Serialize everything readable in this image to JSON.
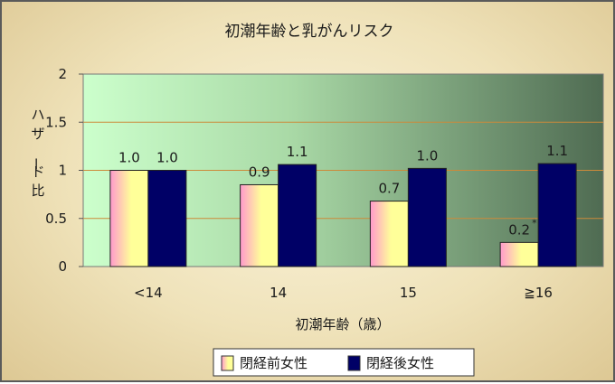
{
  "chart_data": {
    "type": "bar",
    "title": "初潮年齢と乳がんリスク",
    "xlabel": "初潮年齢（歳）",
    "ylabel": "ハザード比",
    "ylim": [
      0,
      2
    ],
    "yticks": [
      "0",
      "0.5",
      "1",
      "1.5",
      "2"
    ],
    "yticks_values": [
      0,
      0.5,
      1,
      1.5,
      2
    ],
    "categories": [
      "<14",
      "14",
      "15",
      "≧16"
    ],
    "series": [
      {
        "name": "閉経前女性",
        "values": [
          1.0,
          0.85,
          0.68,
          0.25
        ],
        "labels": [
          "1.0",
          "0.9",
          "0.7",
          "0.2"
        ],
        "colors": [
          "#ff99cc",
          "#ffff99"
        ]
      },
      {
        "name": "閉経後女性",
        "values": [
          1.0,
          1.06,
          1.02,
          1.07
        ],
        "labels": [
          "1.0",
          "1.1",
          "1.0",
          "1.1"
        ],
        "colors": [
          "#000066"
        ]
      }
    ],
    "annotation": "*",
    "grid": true,
    "legend_position": "bottom"
  }
}
